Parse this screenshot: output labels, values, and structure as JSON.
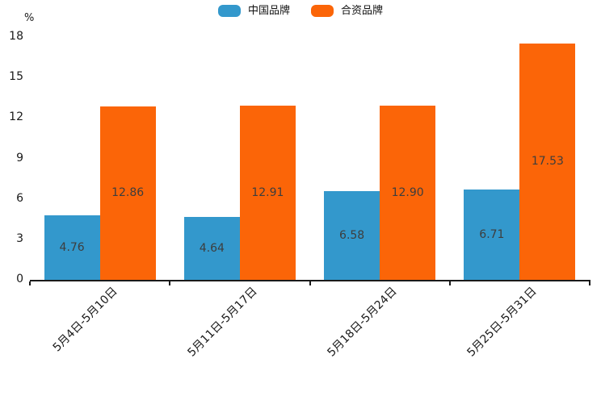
{
  "unit_label": "%",
  "chart_data": {
    "type": "bar",
    "title": "",
    "unit_label": "%",
    "categories": [
      "5月4日-5月10日",
      "5月11日-5月17日",
      "5月18日-5月24日",
      "5月25日-5月31日"
    ],
    "series": [
      {
        "name": "中国品牌",
        "color": "#3398CC",
        "values": [
          4.76,
          4.64,
          6.58,
          6.71
        ]
      },
      {
        "name": "合资品牌",
        "color": "#FB6508",
        "values": [
          12.86,
          12.91,
          12.9,
          17.53
        ]
      }
    ],
    "ylim": [
      0,
      18
    ],
    "yticks": [
      0,
      3,
      6,
      9,
      12,
      15,
      18
    ],
    "grid": false,
    "legend_position": "top-center",
    "value_label_position": "inside-center",
    "axis_color": "#1a1a1a",
    "value_label_color": "#3d3d3d"
  }
}
